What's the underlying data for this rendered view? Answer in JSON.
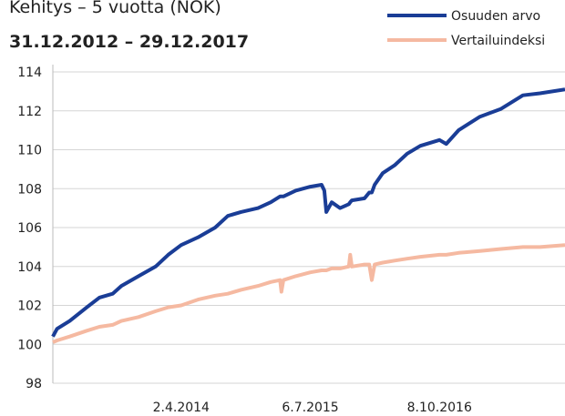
{
  "chart_data": {
    "type": "line",
    "title": "Kehitys – 5 vuotta (NOK)",
    "subtitle": "31.12.2012 – 29.12.2017",
    "x": [
      "2012-12-31",
      "2013-01-15",
      "2013-03-01",
      "2013-05-01",
      "2013-06-15",
      "2013-08-01",
      "2013-09-01",
      "2013-11-01",
      "2014-01-01",
      "2014-02-15",
      "2014-04-02",
      "2014-06-01",
      "2014-08-01",
      "2014-09-15",
      "2014-11-01",
      "2015-01-01",
      "2015-02-15",
      "2015-03-20",
      "2015-03-25",
      "2015-04-01",
      "2015-05-15",
      "2015-07-06",
      "2015-08-15",
      "2015-08-25",
      "2015-09-01",
      "2015-09-20",
      "2015-10-20",
      "2015-11-20",
      "2015-11-25",
      "2015-12-01",
      "2016-01-15",
      "2016-02-01",
      "2016-02-10",
      "2016-02-20",
      "2016-03-20",
      "2016-05-01",
      "2016-06-15",
      "2016-08-01",
      "2016-10-08",
      "2016-11-01",
      "2016-12-15",
      "2017-03-01",
      "2017-05-15",
      "2017-08-01",
      "2017-10-01",
      "2017-12-29"
    ],
    "series": [
      {
        "name": "Osuuden arvo",
        "color": "#1a3d96",
        "values": [
          100.4,
          100.8,
          101.2,
          101.9,
          102.4,
          102.6,
          103.0,
          103.5,
          104.0,
          104.6,
          105.1,
          105.5,
          106.0,
          106.6,
          106.8,
          107.0,
          107.3,
          107.6,
          107.6,
          107.6,
          107.9,
          108.1,
          108.2,
          107.9,
          106.8,
          107.3,
          107.0,
          107.2,
          107.3,
          107.4,
          107.5,
          107.8,
          107.8,
          108.2,
          108.8,
          109.2,
          109.8,
          110.2,
          110.5,
          110.3,
          111.0,
          111.7,
          112.1,
          112.8,
          112.9,
          113.1
        ]
      },
      {
        "name": "Vertailuindeksi",
        "color": "#f5b9a1",
        "values": [
          100.1,
          100.2,
          100.4,
          100.7,
          100.9,
          101.0,
          101.2,
          101.4,
          101.7,
          101.9,
          102.0,
          102.3,
          102.5,
          102.6,
          102.8,
          103.0,
          103.2,
          103.3,
          102.7,
          103.3,
          103.5,
          103.7,
          103.8,
          103.8,
          103.8,
          103.9,
          103.9,
          104.0,
          104.6,
          104.0,
          104.1,
          104.1,
          103.3,
          104.1,
          104.2,
          104.3,
          104.4,
          104.5,
          104.6,
          104.6,
          104.7,
          104.8,
          104.9,
          105.0,
          105.0,
          105.1
        ]
      }
    ],
    "xlim": [
      "2012-12-31",
      "2017-12-29"
    ],
    "xticks": [
      {
        "value": "2014-04-02",
        "label": "2.4.2014"
      },
      {
        "value": "2015-07-06",
        "label": "6.7.2015"
      },
      {
        "value": "2016-10-08",
        "label": "8.10.2016"
      }
    ],
    "ylim": [
      98,
      114
    ],
    "yticks": [
      98,
      100,
      102,
      104,
      106,
      108,
      110,
      112,
      114
    ],
    "grid": true
  }
}
